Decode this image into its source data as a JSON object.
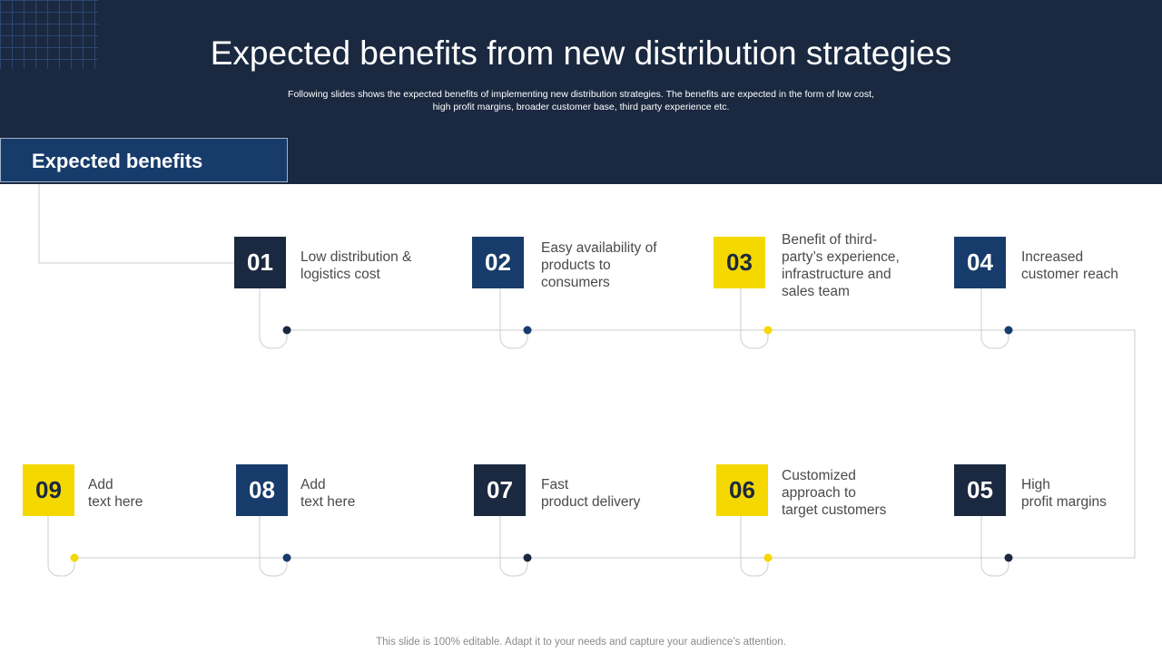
{
  "header": {
    "title": "Expected benefits from new distribution strategies",
    "subtitle_line1": "Following slides shows the expected benefits of implementing new distribution strategies. The benefits are expected in the form of low cost,",
    "subtitle_line2": "high profit margins, broader customer base, third party experience etc."
  },
  "section": {
    "label": "Expected benefits"
  },
  "colors": {
    "navy": "#1a2940",
    "blue": "#173c6b",
    "yellow": "#f5d800"
  },
  "steps": [
    {
      "number": "01",
      "lines": [
        "Low distribution &",
        "logistics cost"
      ]
    },
    {
      "number": "02",
      "lines": [
        "Easy availability of",
        "products to",
        "consumers"
      ]
    },
    {
      "number": "03",
      "lines": [
        "Benefit of third-",
        "party’s experience,",
        "infrastructure  and",
        "sales team"
      ]
    },
    {
      "number": "04",
      "lines": [
        "Increased",
        "customer reach"
      ]
    },
    {
      "number": "05",
      "lines": [
        "High",
        "profit margins"
      ]
    },
    {
      "number": "06",
      "lines": [
        "Customized",
        "approach to",
        "target customers"
      ]
    },
    {
      "number": "07",
      "lines": [
        "Fast",
        "product delivery"
      ]
    },
    {
      "number": "08",
      "lines": [
        "Add",
        "text here"
      ]
    },
    {
      "number": "09",
      "lines": [
        "Add",
        "text here"
      ]
    }
  ],
  "footer": {
    "note": "This slide is 100% editable. Adapt it to your needs and capture your audience’s attention."
  }
}
